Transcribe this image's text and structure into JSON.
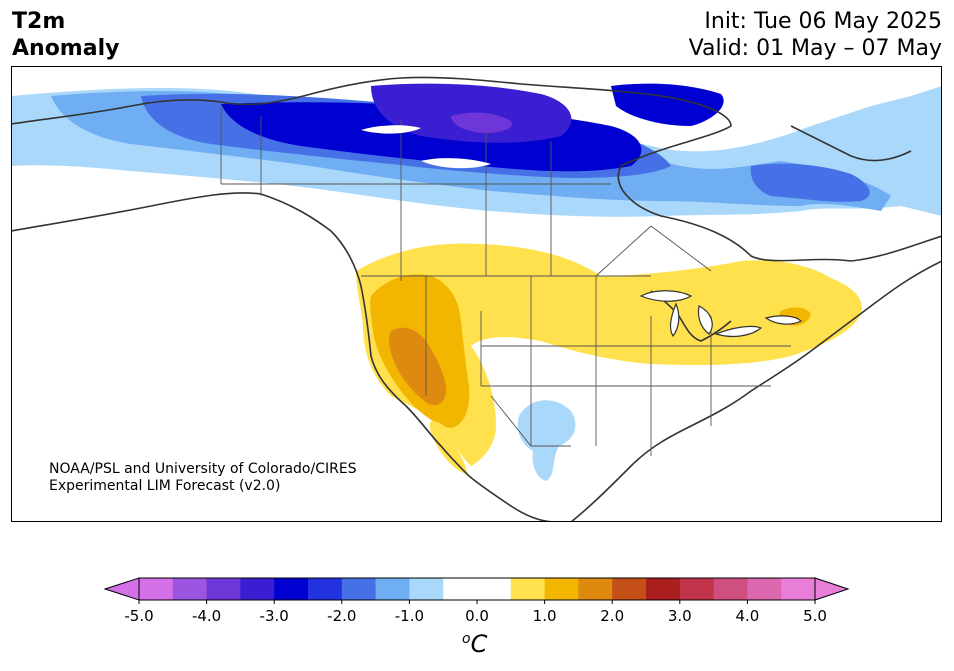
{
  "header": {
    "title_line1": "T2m",
    "title_line2": "Anomaly",
    "init": "Init: Tue 06 May 2025",
    "valid": "Valid: 01 May – 07 May"
  },
  "credit": {
    "line1": "NOAA/PSL and University of Colorado/CIRES",
    "line2": "Experimental LIM Forecast (v2.0)"
  },
  "colorbar": {
    "units": "oC",
    "units_sup": "o",
    "units_main": "C",
    "tick_labels": [
      "-5.0",
      "-4.0",
      "-3.0",
      "-2.0",
      "-1.0",
      "0.0",
      "1.0",
      "2.0",
      "3.0",
      "4.0",
      "5.0"
    ],
    "colors": [
      "#d570e8",
      "#9b55e0",
      "#6e35d9",
      "#3a1fd2",
      "#0000d0",
      "#2232de",
      "#4671e6",
      "#70aef3",
      "#aad8fa",
      "#ffffff",
      "#ffffff",
      "#ffe14e",
      "#f2b600",
      "#de8a10",
      "#c55017",
      "#aa1e1e",
      "#c0334a",
      "#cf5080",
      "#dc68b0",
      "#e87ed8"
    ],
    "under_color": "#d570e8",
    "over_color": "#e87ed8"
  },
  "legend_colors": {
    "cold_strong": "#0000d0",
    "cold": "#4671e6",
    "cool": "#aad8fa",
    "warm": "#ffe14e",
    "hot": "#f2b600",
    "hotter": "#de8a10",
    "coast": "#333333",
    "border": "#555555"
  }
}
